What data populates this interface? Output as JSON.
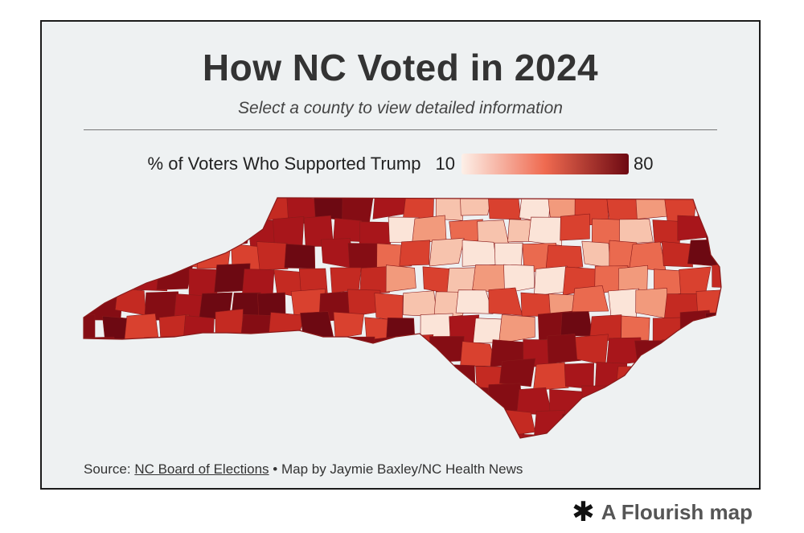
{
  "header": {
    "title": "How NC Voted in 2024",
    "subtitle": "Select a county to view detailed information"
  },
  "legend": {
    "label": "% of Voters Who Supported Trump",
    "min": "10",
    "max": "80",
    "color_min": "#fdf0e8",
    "color_mid": "#ef6a50",
    "color_max": "#6d0912"
  },
  "footer": {
    "source_prefix": "Source: ",
    "source_link": "NC Board of Elections",
    "credit": " • Map by Jaymie Baxley/NC Health News"
  },
  "branding": {
    "icon": "asterisk-icon",
    "label": "A Flourish map"
  },
  "colors": {
    "card_background": "#eef1f2",
    "border": "#1b1b1b",
    "county_stroke": "#8a1a1a"
  }
}
